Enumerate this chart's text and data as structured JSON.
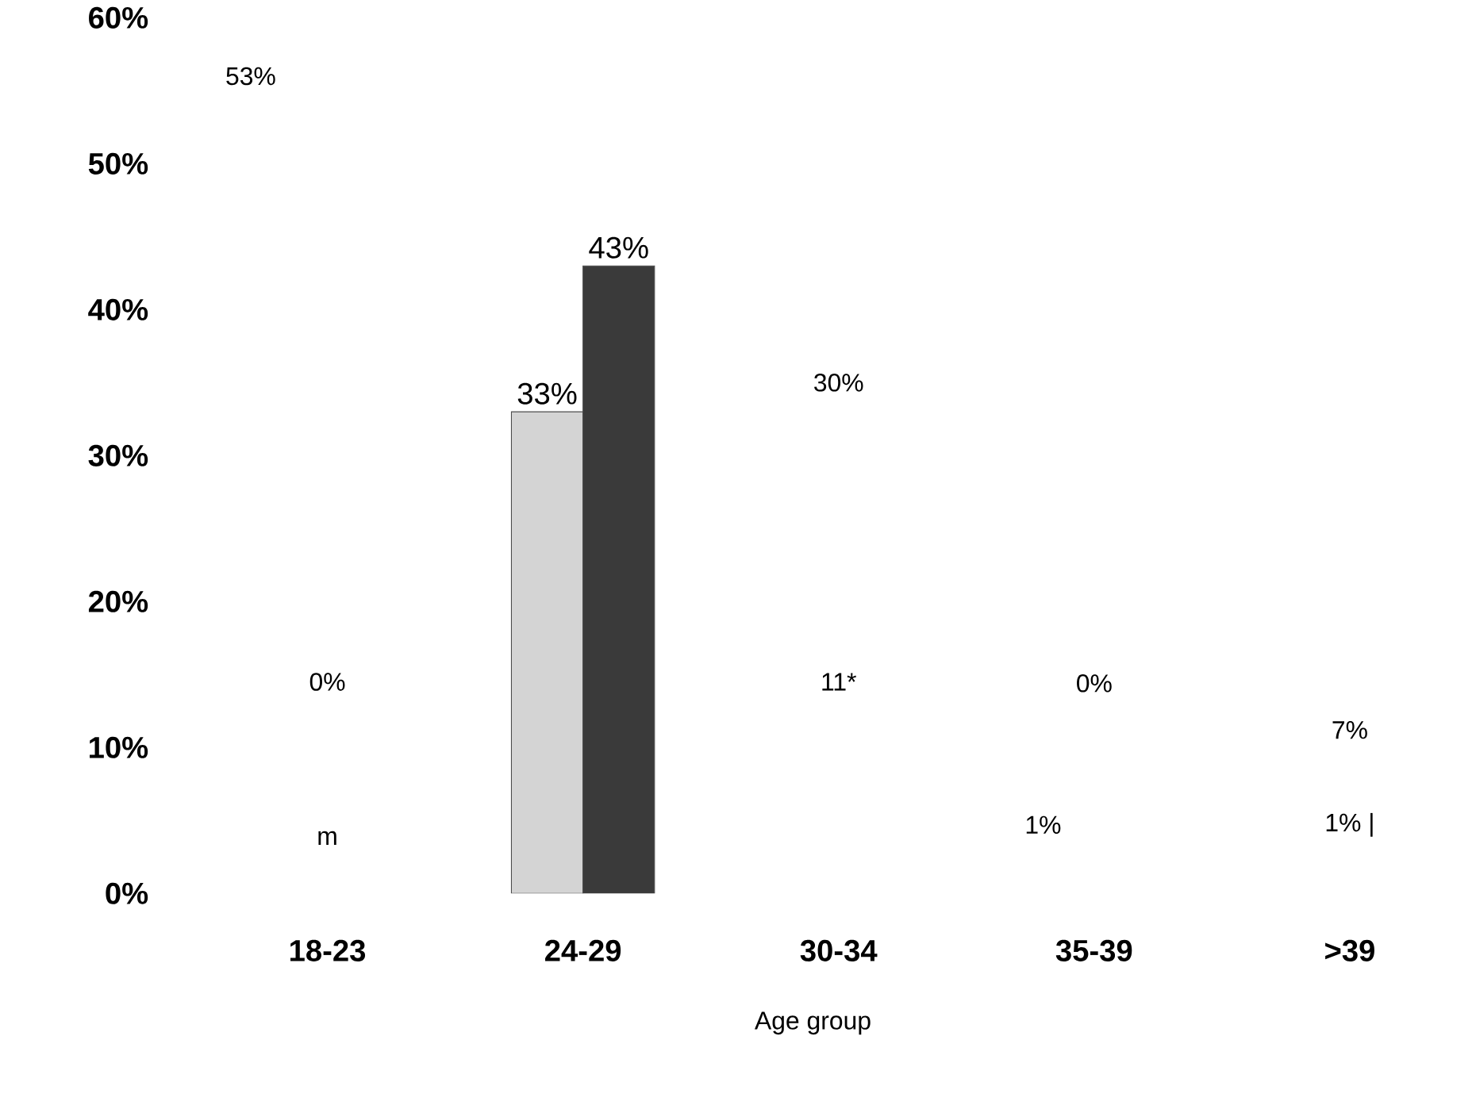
{
  "chart_data": {
    "type": "bar",
    "xlabel": "Age group",
    "categories": [
      "18-23",
      "24-29",
      "30-34",
      "35-39",
      ">39"
    ],
    "series": [
      {
        "color": "#d4d4d4",
        "values": [
          null,
          33,
          null,
          null,
          null
        ],
        "value_labels": [
          null,
          "33%",
          null,
          null,
          null
        ]
      },
      {
        "color": "#3a3a3a",
        "values": [
          null,
          43,
          null,
          null,
          null
        ],
        "value_labels": [
          null,
          "43%",
          null,
          null,
          null
        ]
      }
    ],
    "ylim": [
      0,
      60
    ],
    "yticks": [
      {
        "value": 0,
        "label": "0%"
      },
      {
        "value": 10,
        "label": "10%"
      },
      {
        "value": 20,
        "label": "20%"
      },
      {
        "value": 30,
        "label": "30%"
      },
      {
        "value": 40,
        "label": "40%"
      },
      {
        "value": 50,
        "label": "50%"
      },
      {
        "value": 60,
        "label": "60%"
      }
    ],
    "annotations": [
      "53%",
      "0%",
      "m",
      "30%",
      "11*",
      "0%",
      "1%",
      "7%",
      "1% |"
    ]
  }
}
